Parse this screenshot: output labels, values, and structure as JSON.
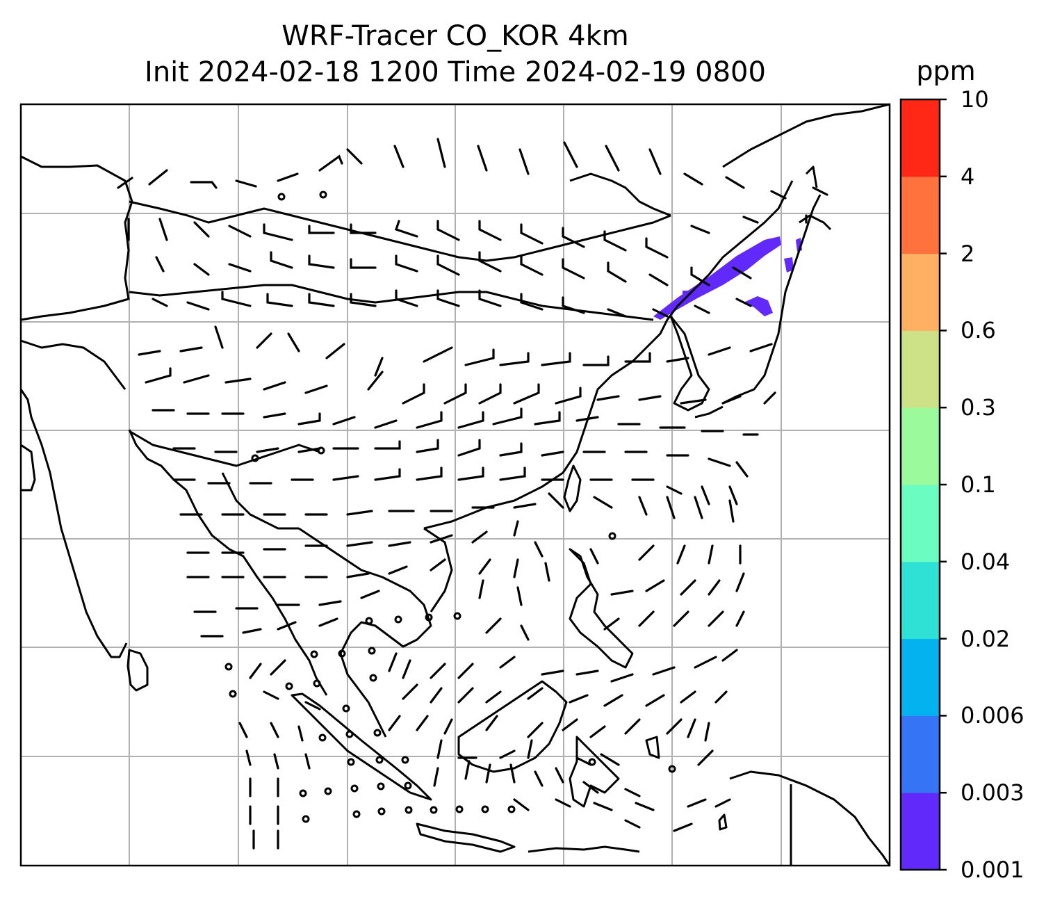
{
  "title": {
    "line1": "WRF-Tracer CO_KOR 4km",
    "line2": "Init 2024-02-18 1200 Time 2024-02-19 0800"
  },
  "colorbar": {
    "unit": "ppm",
    "levels": [
      "0.001",
      "0.003",
      "0.006",
      "0.02",
      "0.04",
      "0.1",
      "0.3",
      "0.6",
      "2",
      "4",
      "10"
    ],
    "colors": [
      "#6229fb",
      "#3574f4",
      "#04b2ef",
      "#2fe0d4",
      "#6afcc1",
      "#9bfa9b",
      "#cde287",
      "#ffb062",
      "#ff723e",
      "#ff2716"
    ]
  },
  "map": {
    "features": [
      "coastlines",
      "country-borders",
      "gridlines",
      "wind-barbs",
      "co-tracer-plume"
    ],
    "plume_color": "#6229fb",
    "grid_color": "#b0b0b0"
  }
}
